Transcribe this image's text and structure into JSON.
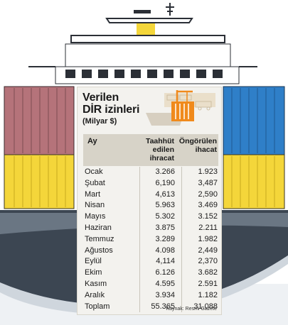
{
  "title_line1": "Verilen",
  "title_line2": "DİR izinleri",
  "subtitle": "(Milyar $)",
  "columns": {
    "month": "Ay",
    "committed": "Taahhüt edilen ihracat",
    "projected": "Öngörülen ihacat"
  },
  "rows": [
    {
      "month": "Ocak",
      "committed": "3.266",
      "projected": "1.923"
    },
    {
      "month": "Şubat",
      "committed": "6,190",
      "projected": "3,487"
    },
    {
      "month": "Mart",
      "committed": "4,613",
      "projected": "2,590"
    },
    {
      "month": "Nisan",
      "committed": "5.963",
      "projected": "3.469"
    },
    {
      "month": "Mayıs",
      "committed": "5.302",
      "projected": "3.152"
    },
    {
      "month": "Haziran",
      "committed": "3.875",
      "projected": "2.211"
    },
    {
      "month": "Temmuz",
      "committed": "3.289",
      "projected": "1.982"
    },
    {
      "month": "Ağustos",
      "committed": "4.098",
      "projected": "2,449"
    },
    {
      "month": "Eylül",
      "committed": "4,114",
      "projected": "2,370"
    },
    {
      "month": "Ekim",
      "committed": "6.126",
      "projected": "3.682"
    },
    {
      "month": "Kasım",
      "committed": "4.595",
      "projected": "2.591"
    },
    {
      "month": "Aralık",
      "committed": "3.934",
      "projected": "1.182"
    },
    {
      "month": "Toplam",
      "committed": "55.365",
      "projected": "31.088"
    }
  ],
  "source": "Kaynak: Resmi Gazete",
  "colors": {
    "container_red": "#b5737a",
    "container_blue": "#2f7fc8",
    "container_yellow": "#f4d63a",
    "hull": "#3c4652",
    "crane": "#f08a1c"
  }
}
